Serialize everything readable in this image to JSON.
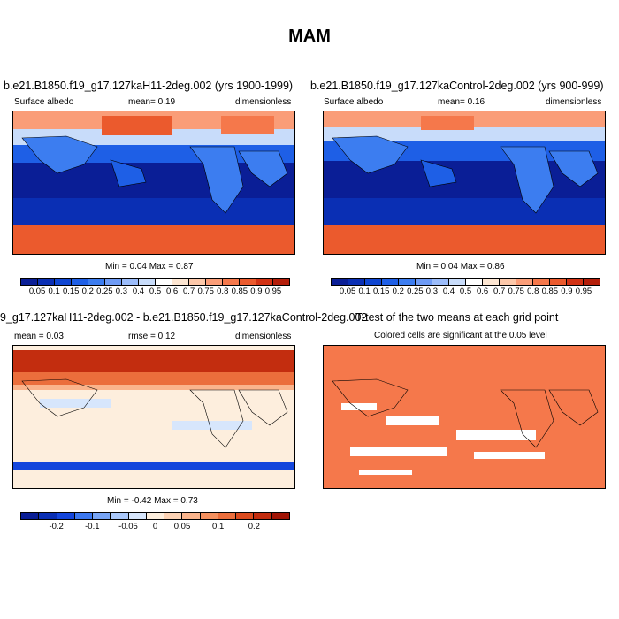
{
  "title": "MAM",
  "panels": [
    {
      "title": "b.e21.B1850.f19_g17.127kaH11-2deg.002 (yrs 1900-1999)",
      "left_label": "Surface albedo",
      "center_label": "mean=  0.19",
      "right_label": "dimensionless",
      "minmax": "Min =  0.04 Max =  0.87"
    },
    {
      "title": "b.e21.B1850.f19_g17.127kaControl-2deg.002 (yrs 900-999)",
      "left_label": "Surface albedo",
      "center_label": "mean=  0.16",
      "right_label": "dimensionless",
      "minmax": "Min =  0.04 Max =  0.86"
    },
    {
      "title": "9_g17.127kaH11-2deg.002 - b.e21.B1850.f19_g17.127kaControl-2deg.002",
      "left_label": "mean =  0.03",
      "center_label": "rmse =  0.12",
      "right_label": "dimensionless",
      "minmax": "Min =  -0.42 Max =  0.73"
    },
    {
      "title": "T-test of the two means at each grid point",
      "subtitle": "Colored cells are significant at the 0.05 level"
    }
  ],
  "colorbar_abs": {
    "labels": [
      "0.05",
      "0.1",
      "0.15",
      "0.2",
      "0.25",
      "0.3",
      "0.4",
      "0.5",
      "0.6",
      "0.7",
      "0.75",
      "0.8",
      "0.85",
      "0.9",
      "0.95"
    ],
    "colors": [
      "#0a1e96",
      "#0a2fb4",
      "#0f46d2",
      "#1e5fe6",
      "#3c7df0",
      "#6e9bf5",
      "#9bbcfa",
      "#c8dcfa",
      "#ffffff",
      "#fde6d2",
      "#fcc8aa",
      "#fa9d78",
      "#f5784b",
      "#eb5a2d",
      "#d23214",
      "#b41e0a"
    ]
  },
  "colorbar_diff": {
    "labels": [
      "-0.2",
      "-0.1",
      "-0.05",
      "0",
      "0.05",
      "0.1",
      "0.2"
    ],
    "colors": [
      "#0a1e96",
      "#0a2fb4",
      "#1446dc",
      "#3c78f0",
      "#78a5f5",
      "#aac8fa",
      "#d7e6fc",
      "#fdeedd",
      "#fcd2b4",
      "#fab48c",
      "#f5915f",
      "#eb6e3c",
      "#dc4b1e",
      "#c32d0f",
      "#a01405"
    ]
  }
}
